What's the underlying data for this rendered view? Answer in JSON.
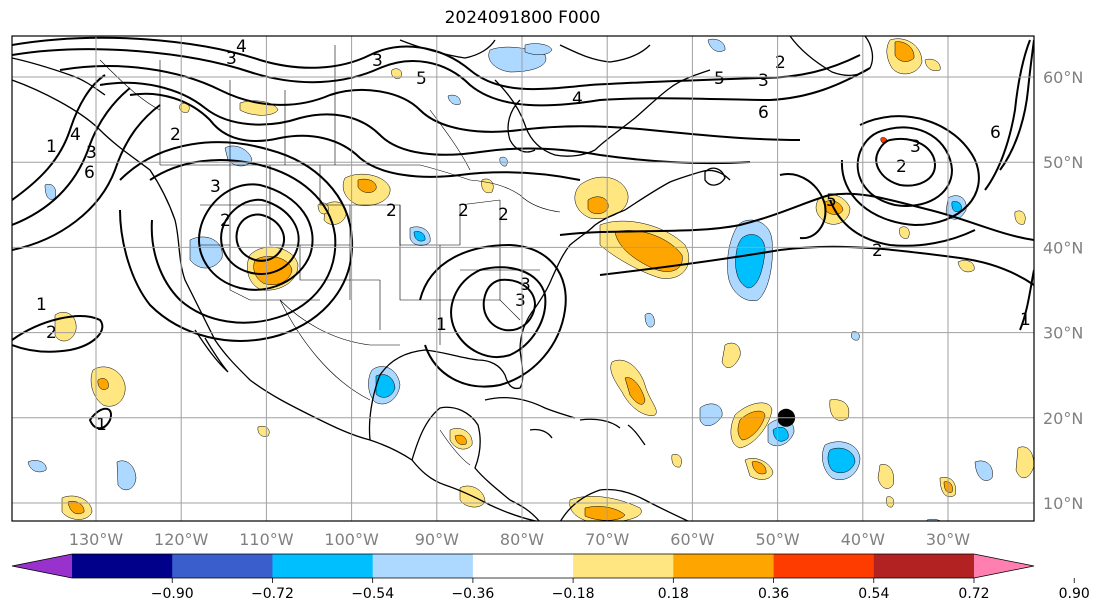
{
  "title": "2024091800 F000",
  "lon_labels": [
    "130°W",
    "120°W",
    "110°W",
    "100°W",
    "90°W",
    "80°W",
    "70°W",
    "60°W",
    "50°W",
    "40°W",
    "30°W"
  ],
  "lat_labels": [
    "60°N",
    "50°N",
    "40°N",
    "30°N",
    "20°N",
    "10°N"
  ],
  "colorbar": {
    "ticks": [
      "−0.90",
      "−0.72",
      "−0.54",
      "−0.36",
      "−0.18",
      "0.18",
      "0.36",
      "0.54",
      "0.72",
      "0.90"
    ],
    "colors": [
      "#9932cc",
      "#00008b",
      "#3a5fcd",
      "#00bfff",
      "#add8ff",
      "#ffffff",
      "#ffe680",
      "#ffa500",
      "#ff3c00",
      "#b22222",
      "#ff80b0"
    ]
  },
  "contour_labels": [
    "4",
    "3",
    "5",
    "4",
    "3",
    "5",
    "6",
    "2",
    "3",
    "2",
    "6",
    "5",
    "3",
    "2",
    "2",
    "6",
    "4",
    "3",
    "2",
    "1",
    "2",
    "3",
    "2",
    "1",
    "1",
    "2",
    "1",
    "3",
    "2",
    "1",
    "3"
  ],
  "marker": {
    "type": "storm-center-dot",
    "lon": -49,
    "lat": 20
  }
}
